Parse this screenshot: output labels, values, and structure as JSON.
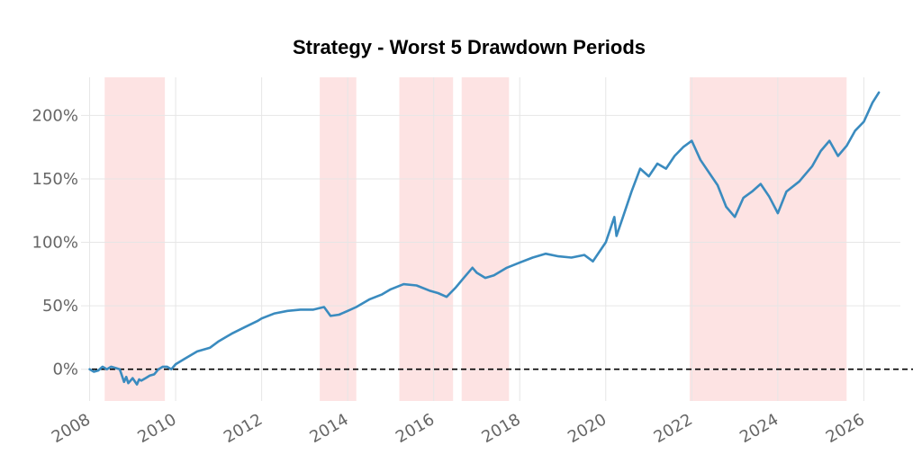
{
  "chart_data": {
    "type": "line",
    "title": "Strategy - Worst 5 Drawdown Periods",
    "xlabel": "",
    "ylabel": "",
    "x_ticks": [
      "2008",
      "2010",
      "2012",
      "2014",
      "2016",
      "2018",
      "2020",
      "2022",
      "2024",
      "2026"
    ],
    "y_ticks": [
      "0%",
      "50%",
      "100%",
      "150%",
      "200%"
    ],
    "y_tick_values": [
      0,
      50,
      100,
      150,
      200
    ],
    "xlim": [
      2007.8,
      2026.85
    ],
    "ylim": [
      -25,
      230
    ],
    "grid": true,
    "baseline": {
      "value": 0,
      "style": "dashed",
      "color": "#000000"
    },
    "colors": {
      "line": "#3a8bbf",
      "drawdown_shade": "#fde3e3"
    },
    "drawdown_periods": [
      {
        "start": 2008.35,
        "end": 2009.75
      },
      {
        "start": 2013.35,
        "end": 2014.2
      },
      {
        "start": 2015.2,
        "end": 2016.45
      },
      {
        "start": 2016.65,
        "end": 2017.75
      },
      {
        "start": 2021.95,
        "end": 2025.6
      }
    ],
    "series": [
      {
        "x": [
          2008.0,
          2008.1,
          2008.2,
          2008.3,
          2008.4,
          2008.5,
          2008.6,
          2008.7,
          2008.8,
          2008.85,
          2008.9,
          2009.0,
          2009.1,
          2009.15,
          2009.2,
          2009.3,
          2009.4,
          2009.5,
          2009.6,
          2009.7,
          2009.8,
          2009.9,
          2010.0,
          2010.2,
          2010.5,
          2010.8,
          2011.0,
          2011.3,
          2011.6,
          2011.9,
          2012.0,
          2012.3,
          2012.6,
          2012.9,
          2013.2,
          2013.45,
          2013.6,
          2013.8,
          2014.0,
          2014.2,
          2014.5,
          2014.8,
          2015.0,
          2015.3,
          2015.6,
          2015.9,
          2016.1,
          2016.3,
          2016.5,
          2016.7,
          2016.9,
          2017.0,
          2017.2,
          2017.4,
          2017.7,
          2018.0,
          2018.3,
          2018.6,
          2018.9,
          2019.2,
          2019.5,
          2019.7,
          2019.9,
          2020.0,
          2020.1,
          2020.2,
          2020.25,
          2020.4,
          2020.6,
          2020.8,
          2021.0,
          2021.2,
          2021.4,
          2021.6,
          2021.8,
          2022.0,
          2022.2,
          2022.4,
          2022.6,
          2022.8,
          2023.0,
          2023.2,
          2023.4,
          2023.6,
          2023.8,
          2024.0,
          2024.2,
          2024.5,
          2024.8,
          2025.0,
          2025.2,
          2025.4,
          2025.6,
          2025.8,
          2026.0,
          2026.2,
          2026.35
        ],
        "values": [
          0,
          -2,
          -1,
          2,
          0,
          2,
          1,
          0,
          -10,
          -6,
          -11,
          -7,
          -12,
          -8,
          -9,
          -7,
          -5,
          -4,
          0,
          2,
          2,
          0,
          4,
          8,
          14,
          17,
          22,
          28,
          33,
          38,
          40,
          44,
          46,
          47,
          47,
          49,
          42,
          43,
          46,
          49,
          55,
          59,
          63,
          67,
          66,
          62,
          60,
          57,
          64,
          72,
          80,
          76,
          72,
          74,
          80,
          84,
          88,
          91,
          89,
          88,
          90,
          85,
          95,
          100,
          110,
          120,
          105,
          120,
          140,
          158,
          152,
          162,
          158,
          168,
          175,
          180,
          165,
          155,
          145,
          128,
          120,
          135,
          140,
          146,
          136,
          123,
          140,
          148,
          160,
          172,
          180,
          168,
          176,
          188,
          195,
          210,
          218
        ]
      }
    ]
  }
}
